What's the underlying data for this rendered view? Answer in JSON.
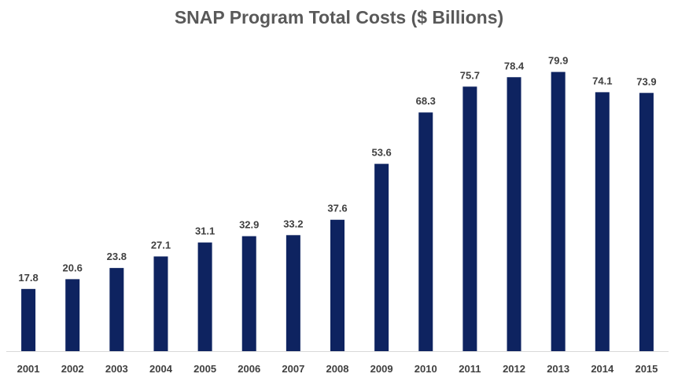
{
  "chart_data": {
    "type": "bar",
    "title": "SNAP Program Total Costs ($ Billions)",
    "xlabel": "",
    "ylabel": "",
    "categories": [
      "2001",
      "2002",
      "2003",
      "2004",
      "2005",
      "2006",
      "2007",
      "2008",
      "2009",
      "2010",
      "2011",
      "2012",
      "2013",
      "2014",
      "2015"
    ],
    "values": [
      17.8,
      20.6,
      23.8,
      27.1,
      31.1,
      32.9,
      33.2,
      37.6,
      53.6,
      68.3,
      75.7,
      78.4,
      79.9,
      74.1,
      73.9
    ],
    "ylim": [
      0,
      87
    ],
    "grid": false,
    "legend": "none",
    "data_labels": true
  },
  "colors": {
    "bar": "#0e2360",
    "title_text": "#595959",
    "label_text": "#404040",
    "tick_text": "#404040",
    "axis_line": "#d9d9d9"
  }
}
